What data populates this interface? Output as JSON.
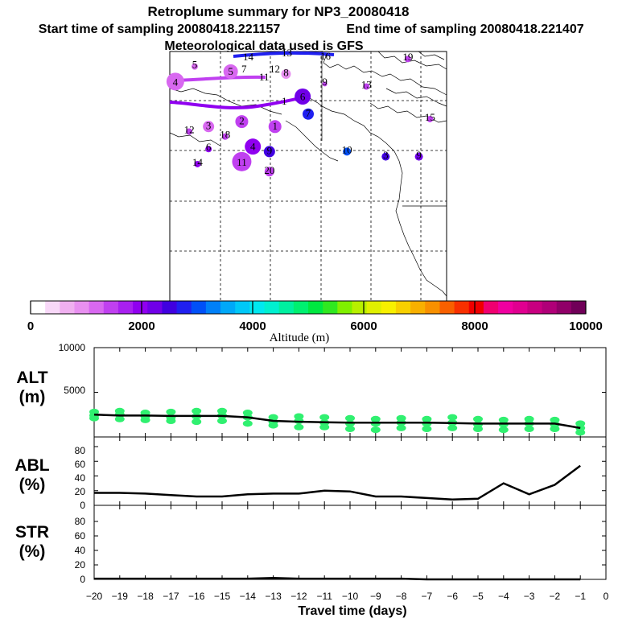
{
  "header": {
    "title": "Retroplume summary for NP3_20080418",
    "start_time": "Start time of sampling 20080418.221157",
    "end_time": "End time of sampling 20080418.221407",
    "met_data": "Meteorological data used is GFS"
  },
  "colorbar": {
    "label": "Altitude (m)",
    "tick_labels": [
      "0",
      "2000",
      "4000",
      "6000",
      "8000",
      "10000"
    ],
    "tick_values": [
      0,
      2000,
      4000,
      6000,
      8000,
      10000
    ],
    "colors": [
      "#ffffff",
      "#f8d8f8",
      "#f0b0f0",
      "#e890f0",
      "#d868f0",
      "#c040f0",
      "#a820f0",
      "#9000f0",
      "#7000e8",
      "#4000e0",
      "#2020f0",
      "#0050f8",
      "#0080f8",
      "#00a8f8",
      "#00c8f8",
      "#00e8f0",
      "#00f0d0",
      "#00f0a0",
      "#00f070",
      "#00e840",
      "#30e820",
      "#80f000",
      "#b8f000",
      "#e0f000",
      "#f8f000",
      "#f8d000",
      "#f8b000",
      "#f89000",
      "#f86000",
      "#f83000",
      "#f00000",
      "#f00070",
      "#f000a0",
      "#e00090",
      "#c80080",
      "#b00078",
      "#900068",
      "#700058"
    ]
  },
  "map": {
    "labels": [
      "5",
      "7",
      "4",
      "6",
      "8",
      "9",
      "2",
      "1",
      "3",
      "10",
      "11",
      "12",
      "13",
      "14",
      "15",
      "16",
      "17",
      "18",
      "19",
      "20"
    ],
    "circles": [
      {
        "label": "4",
        "lon": 0.02,
        "lat": 0.12,
        "r": 11,
        "color": "#d868f0"
      },
      {
        "label": "5",
        "lon": 0.22,
        "lat": 0.08,
        "r": 9,
        "color": "#d868f0"
      },
      {
        "label": "6",
        "lon": 0.48,
        "lat": 0.18,
        "r": 10,
        "color": "#7000e8"
      },
      {
        "label": "11",
        "lon": 0.26,
        "lat": 0.44,
        "r": 12,
        "color": "#c040f0"
      },
      {
        "label": "4",
        "lon": 0.3,
        "lat": 0.38,
        "r": 10,
        "color": "#9000f0"
      },
      {
        "label": "2",
        "lon": 0.26,
        "lat": 0.28,
        "r": 8,
        "color": "#c040f0"
      },
      {
        "label": "1",
        "lon": 0.38,
        "lat": 0.3,
        "r": 8,
        "color": "#c040f0"
      },
      {
        "label": "3",
        "lon": 0.14,
        "lat": 0.3,
        "r": 7,
        "color": "#d868f0"
      },
      {
        "label": "9",
        "lon": 0.36,
        "lat": 0.4,
        "r": 7,
        "color": "#4000e0"
      },
      {
        "label": "7",
        "lon": 0.5,
        "lat": 0.25,
        "r": 7,
        "color": "#2020f0"
      },
      {
        "label": "20",
        "lon": 0.36,
        "lat": 0.48,
        "r": 6,
        "color": "#c040f0"
      },
      {
        "label": "8",
        "lon": 0.42,
        "lat": 0.09,
        "r": 6,
        "color": "#e890f0"
      },
      {
        "label": "10",
        "lon": 0.64,
        "lat": 0.4,
        "r": 5,
        "color": "#0050f8"
      },
      {
        "label": "3",
        "lon": 0.78,
        "lat": 0.42,
        "r": 5,
        "color": "#4000e0"
      },
      {
        "label": "9",
        "lon": 0.9,
        "lat": 0.42,
        "r": 5,
        "color": "#7000e8"
      },
      {
        "label": "19",
        "lon": 0.86,
        "lat": 0.03,
        "r": 4,
        "color": "#c040f0"
      },
      {
        "label": "13",
        "lon": 0.71,
        "lat": 0.14,
        "r": 4,
        "color": "#c040f0"
      },
      {
        "label": "9",
        "lon": 0.56,
        "lat": 0.13,
        "r": 3,
        "color": "#c040f0"
      },
      {
        "label": "5",
        "lon": 0.09,
        "lat": 0.06,
        "r": 4,
        "color": "#d868f0"
      },
      {
        "label": "15",
        "lon": 0.94,
        "lat": 0.27,
        "r": 4,
        "color": "#c040f0"
      },
      {
        "label": "18",
        "lon": 0.2,
        "lat": 0.34,
        "r": 4,
        "color": "#c040f0"
      },
      {
        "label": "14",
        "lon": 0.1,
        "lat": 0.45,
        "r": 4,
        "color": "#9000f0"
      },
      {
        "label": "6",
        "lon": 0.14,
        "lat": 0.39,
        "r": 4,
        "color": "#9000f0"
      },
      {
        "label": "12",
        "lon": 0.07,
        "lat": 0.32,
        "r": 4,
        "color": "#c040f0"
      }
    ],
    "extra_labels": [
      "14",
      "13",
      "16",
      "11",
      "7",
      "12",
      "1"
    ]
  },
  "alt_panel": {
    "label_line1": "ALT",
    "label_line2": "(m)",
    "y_ticks": [
      "10000",
      "5000"
    ]
  },
  "abl_panel": {
    "label_line1": "ABL",
    "label_line2": "(%)",
    "y_ticks": [
      "0",
      "20",
      "40",
      "60",
      "80"
    ]
  },
  "str_panel": {
    "label_line1": "STR",
    "label_line2": "(%)",
    "y_ticks": [
      "0",
      "20",
      "40",
      "60",
      "80"
    ]
  },
  "x_axis": {
    "label": "Travel time (days)",
    "tick_labels": [
      "−20",
      "−19",
      "−18",
      "−17",
      "−16",
      "−15",
      "−14",
      "−13",
      "−12",
      "−11",
      "−10",
      "−9",
      "−8",
      "−7",
      "−6",
      "−5",
      "−4",
      "−3",
      "−2",
      "−1",
      "0"
    ]
  },
  "chart_data": [
    {
      "type": "line",
      "title": "Retroplume summary for NP3_20080418",
      "panel": "ALT",
      "xlabel": "Travel time (days)",
      "ylabel": "ALT (m)",
      "xlim": [
        -20,
        0
      ],
      "ylim": [
        0,
        10000
      ],
      "x": [
        -20,
        -19,
        -18,
        -17,
        -16,
        -15,
        -14,
        -13,
        -12,
        -11,
        -10,
        -9,
        -8,
        -7,
        -6,
        -5,
        -4,
        -3,
        -2,
        -1
      ],
      "series": [
        {
          "name": "median altitude",
          "values": [
            2500,
            2400,
            2400,
            2350,
            2350,
            2350,
            2200,
            1800,
            1700,
            1650,
            1600,
            1600,
            1600,
            1600,
            1550,
            1500,
            1500,
            1500,
            1500,
            1000
          ]
        }
      ],
      "scatter": {
        "name": "particle altitudes",
        "color": "#30f070",
        "points": [
          [
            -20,
            2800
          ],
          [
            -20,
            2400
          ],
          [
            -20,
            2100
          ],
          [
            -19,
            2900
          ],
          [
            -19,
            2500
          ],
          [
            -19,
            2000
          ],
          [
            -18,
            2700
          ],
          [
            -18,
            2300
          ],
          [
            -18,
            1900
          ],
          [
            -17,
            2800
          ],
          [
            -17,
            2200
          ],
          [
            -17,
            1800
          ],
          [
            -16,
            2900
          ],
          [
            -16,
            2300
          ],
          [
            -16,
            1700
          ],
          [
            -15,
            2900
          ],
          [
            -15,
            2400
          ],
          [
            -15,
            1800
          ],
          [
            -14,
            2700
          ],
          [
            -14,
            2200
          ],
          [
            -14,
            1500
          ],
          [
            -13,
            2200
          ],
          [
            -13,
            1700
          ],
          [
            -13,
            1300
          ],
          [
            -12,
            2300
          ],
          [
            -12,
            1800
          ],
          [
            -12,
            1100
          ],
          [
            -11,
            2200
          ],
          [
            -11,
            1600
          ],
          [
            -11,
            1100
          ],
          [
            -10,
            2100
          ],
          [
            -10,
            1500
          ],
          [
            -10,
            900
          ],
          [
            -9,
            2000
          ],
          [
            -9,
            1500
          ],
          [
            -9,
            800
          ],
          [
            -8,
            2100
          ],
          [
            -8,
            1600
          ],
          [
            -8,
            1000
          ],
          [
            -7,
            2000
          ],
          [
            -7,
            1500
          ],
          [
            -7,
            900
          ],
          [
            -6,
            2200
          ],
          [
            -6,
            1600
          ],
          [
            -6,
            1000
          ],
          [
            -5,
            2000
          ],
          [
            -5,
            1400
          ],
          [
            -5,
            900
          ],
          [
            -4,
            1900
          ],
          [
            -4,
            1400
          ],
          [
            -4,
            800
          ],
          [
            -3,
            2000
          ],
          [
            -3,
            1500
          ],
          [
            -3,
            900
          ],
          [
            -2,
            1900
          ],
          [
            -2,
            1400
          ],
          [
            -2,
            900
          ],
          [
            -1,
            1500
          ],
          [
            -1,
            1000
          ],
          [
            -1,
            500
          ]
        ]
      }
    },
    {
      "type": "line",
      "panel": "ABL",
      "xlabel": "Travel time (days)",
      "ylabel": "ABL (%)",
      "xlim": [
        -20,
        0
      ],
      "ylim": [
        0,
        100
      ],
      "x": [
        -20,
        -19,
        -18,
        -17,
        -16,
        -15,
        -14,
        -13,
        -12,
        -11,
        -10,
        -9,
        -8,
        -7,
        -6,
        -5,
        -4,
        -3,
        -2,
        -1
      ],
      "series": [
        {
          "name": "ABL fraction",
          "values": [
            17,
            17,
            16,
            14,
            12,
            12,
            15,
            16,
            16,
            20,
            19,
            12,
            12,
            10,
            8,
            9,
            30,
            15,
            28,
            54
          ]
        }
      ]
    },
    {
      "type": "line",
      "panel": "STR",
      "xlabel": "Travel time (days)",
      "ylabel": "STR (%)",
      "xlim": [
        -20,
        0
      ],
      "ylim": [
        0,
        100
      ],
      "x": [
        -20,
        -19,
        -18,
        -17,
        -16,
        -15,
        -14,
        -13,
        -12,
        -11,
        -10,
        -9,
        -8,
        -7,
        -6,
        -5,
        -4,
        -3,
        -2,
        -1
      ],
      "series": [
        {
          "name": "STR fraction",
          "values": [
            1,
            1,
            1,
            1,
            1,
            1,
            1,
            2,
            1,
            1,
            1,
            1,
            1,
            0,
            0,
            0,
            0,
            0,
            0,
            0
          ]
        }
      ]
    }
  ]
}
